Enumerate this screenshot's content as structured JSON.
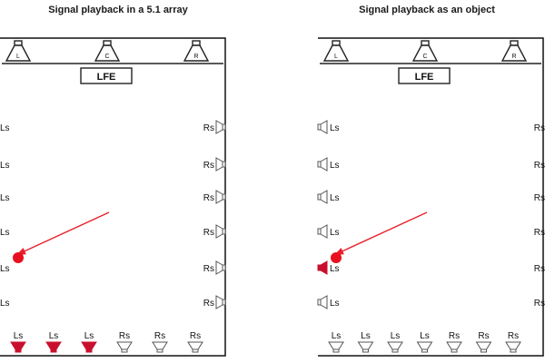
{
  "left_panel": {
    "title": "Signal playback in a 5.1 array",
    "front_speakers": [
      "L",
      "C",
      "R"
    ],
    "lfe_label": "LFE",
    "left_side_labels": [
      "Ls",
      "Ls",
      "Ls",
      "Ls",
      "Ls",
      "Ls"
    ],
    "right_side_labels": [
      "Rs",
      "Rs",
      "Rs",
      "Rs",
      "Rs",
      "Rs"
    ],
    "rear_labels": [
      "Ls",
      "Ls",
      "Ls",
      "Rs",
      "Rs",
      "Rs"
    ],
    "active_rear": [
      true,
      true,
      true,
      false,
      false,
      false
    ],
    "active_left_side": [
      false,
      false,
      false,
      false,
      false,
      false
    ]
  },
  "right_panel": {
    "title": "Signal playback as an object",
    "front_speakers": [
      "L",
      "C",
      "R"
    ],
    "lfe_label": "LFE",
    "left_side_labels": [
      "Ls",
      "Ls",
      "Ls",
      "Ls",
      "Ls",
      "Ls"
    ],
    "right_side_labels": [
      "Rs",
      "Rs",
      "Rs",
      "Rs",
      "Rs",
      "Rs"
    ],
    "rear_labels": [
      "Ls",
      "Ls",
      "Ls",
      "Ls",
      "Rs",
      "Rs",
      "Rs"
    ],
    "active_rear": [
      false,
      false,
      false,
      false,
      false,
      false,
      false
    ],
    "active_left_side": [
      false,
      false,
      false,
      false,
      true,
      false
    ]
  },
  "colors": {
    "active": "#c8102e",
    "inactive_stroke": "#555555",
    "room_border": "#111111",
    "arrow": "#e8202a",
    "source": "#e8101e"
  }
}
